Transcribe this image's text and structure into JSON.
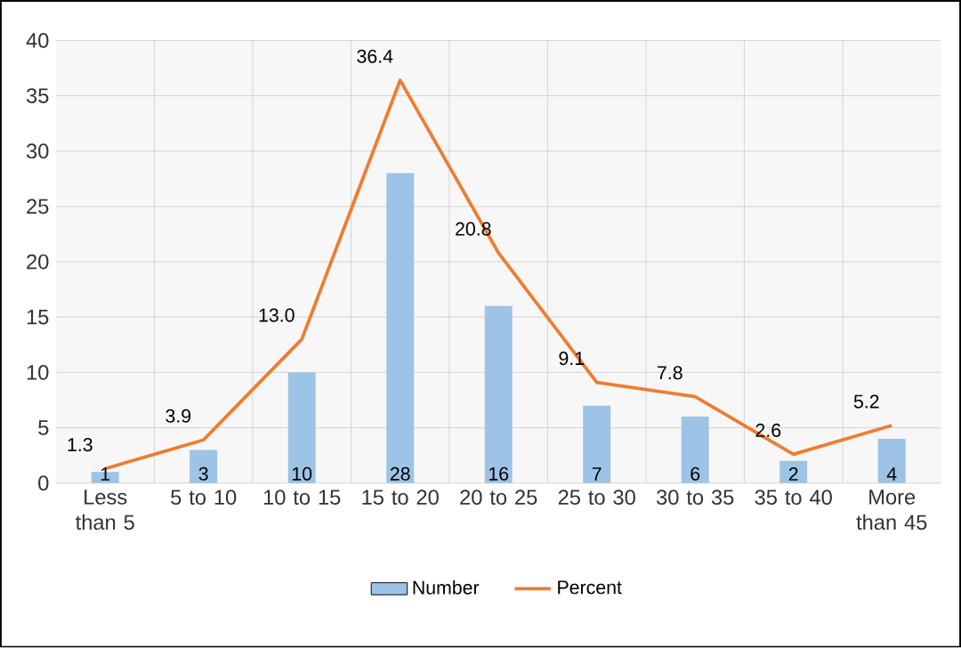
{
  "chart_data": {
    "type": "bar",
    "categories": [
      "Less than 5",
      "5 to 10",
      "10 to 15",
      "15 to 20",
      "20 to 25",
      "25 to 30",
      "30 to 35",
      "35 to 40",
      "More than 45"
    ],
    "series": [
      {
        "name": "Number",
        "color": "#9dc3e6",
        "values": [
          1,
          3,
          10,
          28,
          16,
          7,
          6,
          2,
          4
        ],
        "value_labels": [
          "1",
          "3",
          "10",
          "28",
          "16",
          "7",
          "6",
          "2",
          "4"
        ]
      },
      {
        "name": "Percent",
        "type": "line",
        "color": "#ed7d31",
        "values": [
          1.3,
          3.9,
          13.0,
          36.4,
          20.8,
          9.1,
          7.8,
          2.6,
          5.2
        ],
        "value_labels": [
          "1.3",
          "3.9",
          "13.0",
          "36.4",
          "20.8",
          "9.1",
          "7.8",
          "2.6",
          "5.2"
        ]
      }
    ],
    "ylim": [
      0,
      40
    ],
    "yticks": [
      0,
      5,
      10,
      15,
      20,
      25,
      30,
      35,
      40
    ],
    "grid": true,
    "legend": "bottom",
    "marker": "none",
    "line_style": "solid"
  }
}
